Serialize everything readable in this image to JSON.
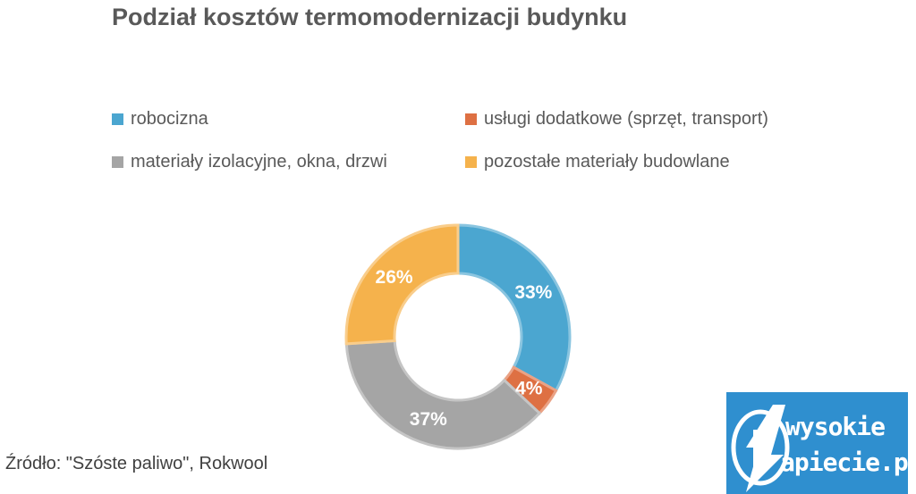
{
  "chart_data": {
    "type": "pie",
    "variant": "donut",
    "title": "Podział kosztów termomodernizacji budynku",
    "categories": [
      "robocizna",
      "usługi dodatkowe (sprzęt, transport)",
      "materiały izolacyjne, okna, drzwi",
      "pozostałe materiały budowlane"
    ],
    "values": [
      33,
      4,
      37,
      26
    ],
    "labels": [
      "33%",
      "4%",
      "37%",
      "26%"
    ],
    "colors": [
      "#4ba6d0",
      "#de7043",
      "#a5a5a5",
      "#f5b24c"
    ],
    "legend_position": "top",
    "legend": [
      {
        "label": "robocizna",
        "color": "#4ba6d0"
      },
      {
        "label": "usługi dodatkowe (sprzęt, transport)",
        "color": "#de7043"
      },
      {
        "label": "materiały izolacyjne, okna, drzwi",
        "color": "#a5a5a5"
      },
      {
        "label": "pozostałe materiały budowlane",
        "color": "#f5b24c"
      }
    ]
  },
  "source_text": "Źródło: \"Szóste paliwo\", Rokwool",
  "logo": {
    "line1": "wysokie",
    "line2": "apiecie.pl",
    "color": "#2f8fcf"
  }
}
